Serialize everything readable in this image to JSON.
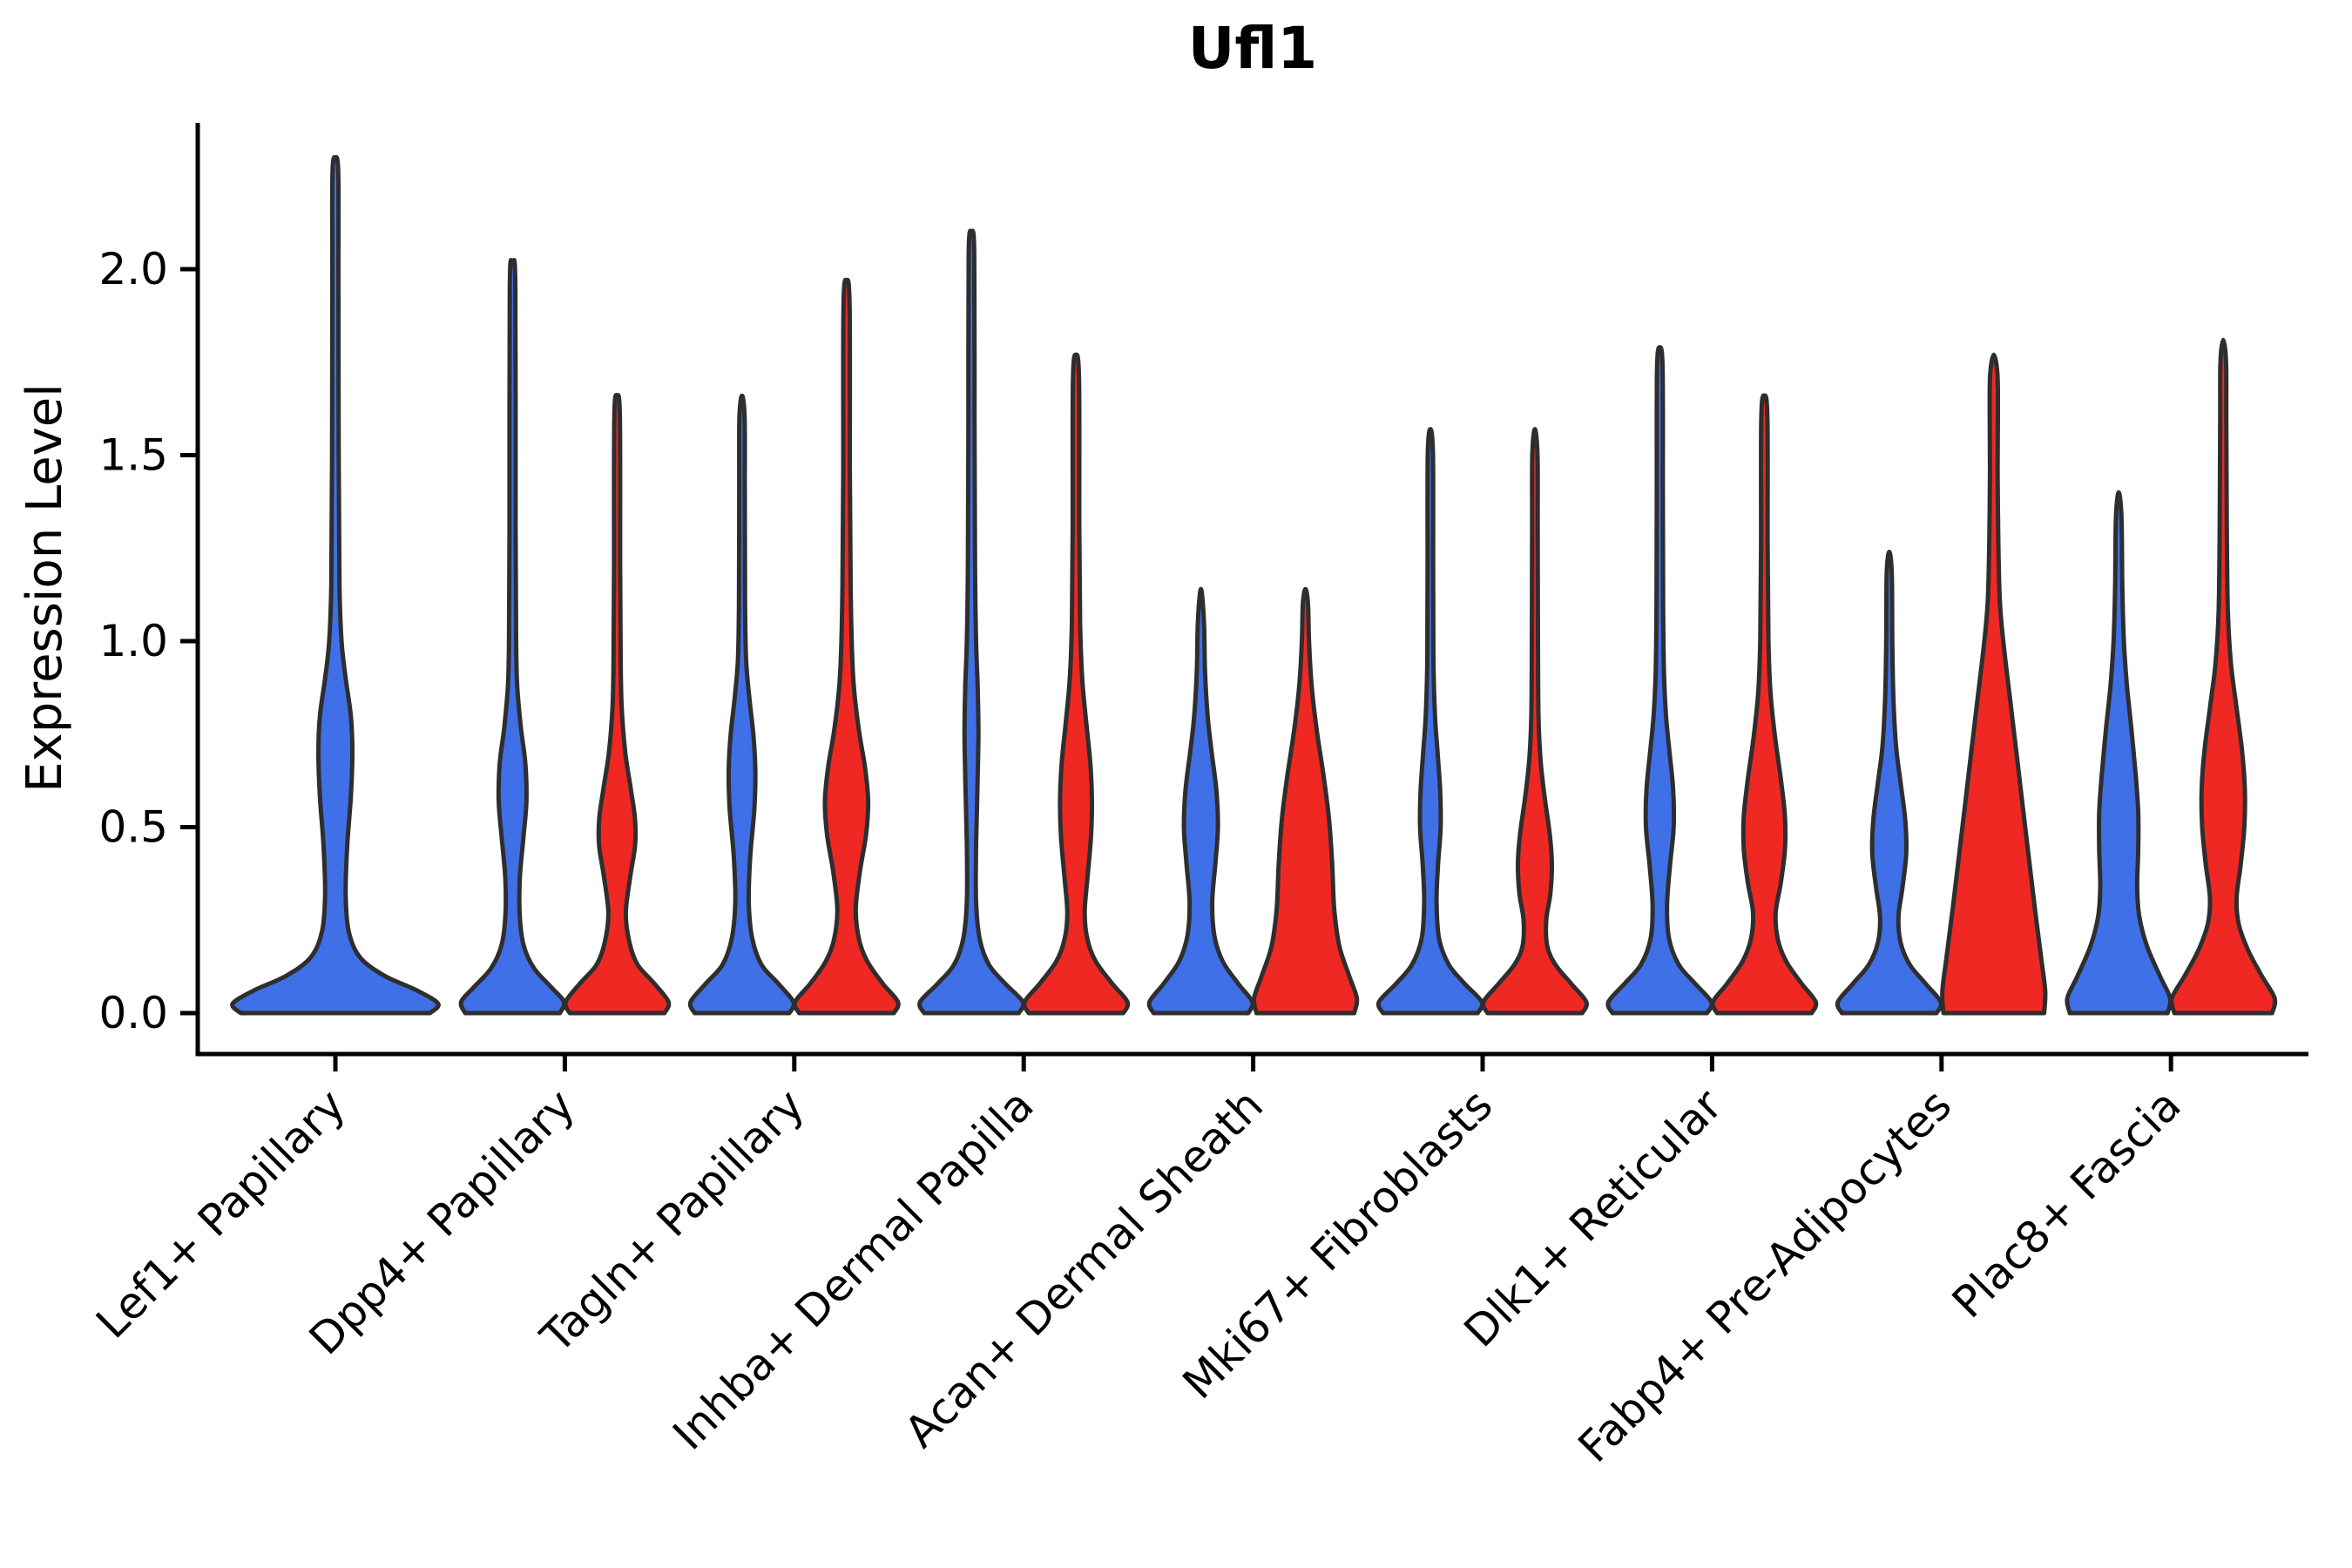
{
  "title": "Ufl1",
  "y_axis": {
    "label": "Expression Level",
    "ticks": [
      "0.0",
      "0.5",
      "1.0",
      "1.5",
      "2.0"
    ]
  },
  "colors": {
    "blue": "#4070E8",
    "red": "#F02823",
    "outline": "#2E2E2E",
    "axis": "#000000"
  },
  "chart_data": {
    "type": "violin",
    "title": "Ufl1",
    "ylabel": "Expression Level",
    "ylim": [
      0,
      2.35
    ],
    "yticks": [
      0.0,
      0.5,
      1.0,
      1.5,
      2.0
    ],
    "grid": false,
    "legend": "none",
    "categories": [
      "Lef1+ Papillary",
      "Dpp4+ Papillary",
      "Tagln+ Papillary",
      "Inhba+ Dermal Papilla",
      "Acan+ Dermal Sheath",
      "Mki67+ Fibroblasts",
      "Dlk1+ Reticular",
      "Fabp4+ Pre-Adipocytes",
      "Plac8+ Fascia"
    ],
    "splits": [
      "blue",
      "red"
    ],
    "split_colors": {
      "blue": "#4070E8",
      "red": "#F02823"
    },
    "max_expression": {
      "blue": [
        2.3,
        2.01,
        1.66,
        2.1,
        1.14,
        1.57,
        1.79,
        1.24,
        1.4
      ],
      "red": [
        null,
        1.66,
        1.97,
        1.77,
        1.14,
        1.57,
        1.66,
        1.77,
        1.81
      ]
    },
    "violins": [
      {
        "category_index": 0,
        "split": "blue",
        "single": true,
        "profile": [
          [
            0,
            0.92
          ],
          [
            0.025,
            1
          ],
          [
            0.06,
            0.8
          ],
          [
            0.1,
            0.48
          ],
          [
            0.15,
            0.24
          ],
          [
            0.22,
            0.13
          ],
          [
            0.32,
            0.1
          ],
          [
            0.45,
            0.115
          ],
          [
            0.58,
            0.15
          ],
          [
            0.7,
            0.165
          ],
          [
            0.8,
            0.15
          ],
          [
            0.9,
            0.1
          ],
          [
            1.0,
            0.06
          ],
          [
            1.15,
            0.04
          ],
          [
            1.5,
            0.032
          ],
          [
            2.0,
            0.03
          ],
          [
            2.26,
            0.028
          ],
          [
            2.3,
            0
          ]
        ]
      },
      {
        "category_index": 1,
        "split": "blue",
        "single": false,
        "profile": [
          [
            0,
            0.92
          ],
          [
            0.03,
            1
          ],
          [
            0.07,
            0.75
          ],
          [
            0.12,
            0.42
          ],
          [
            0.18,
            0.22
          ],
          [
            0.26,
            0.14
          ],
          [
            0.36,
            0.14
          ],
          [
            0.47,
            0.21
          ],
          [
            0.57,
            0.27
          ],
          [
            0.67,
            0.25
          ],
          [
            0.77,
            0.16
          ],
          [
            0.88,
            0.09
          ],
          [
            1.0,
            0.07
          ],
          [
            1.3,
            0.06
          ],
          [
            1.95,
            0.055
          ],
          [
            2.01,
            0
          ]
        ]
      },
      {
        "category_index": 1,
        "split": "red",
        "single": false,
        "profile": [
          [
            0,
            0.92
          ],
          [
            0.03,
            1
          ],
          [
            0.08,
            0.72
          ],
          [
            0.13,
            0.4
          ],
          [
            0.19,
            0.24
          ],
          [
            0.27,
            0.17
          ],
          [
            0.37,
            0.26
          ],
          [
            0.45,
            0.35
          ],
          [
            0.52,
            0.35
          ],
          [
            0.6,
            0.27
          ],
          [
            0.7,
            0.16
          ],
          [
            0.82,
            0.09
          ],
          [
            0.95,
            0.07
          ],
          [
            1.2,
            0.06
          ],
          [
            1.6,
            0.055
          ],
          [
            1.66,
            0
          ]
        ]
      },
      {
        "category_index": 2,
        "split": "blue",
        "single": false,
        "profile": [
          [
            0,
            0.92
          ],
          [
            0.03,
            1
          ],
          [
            0.08,
            0.7
          ],
          [
            0.13,
            0.38
          ],
          [
            0.2,
            0.2
          ],
          [
            0.3,
            0.13
          ],
          [
            0.42,
            0.16
          ],
          [
            0.55,
            0.24
          ],
          [
            0.65,
            0.26
          ],
          [
            0.75,
            0.22
          ],
          [
            0.85,
            0.14
          ],
          [
            0.95,
            0.08
          ],
          [
            1.1,
            0.06
          ],
          [
            1.4,
            0.055
          ],
          [
            1.6,
            0.05
          ],
          [
            1.66,
            0
          ]
        ]
      },
      {
        "category_index": 2,
        "split": "red",
        "single": false,
        "profile": [
          [
            0,
            0.92
          ],
          [
            0.03,
            1
          ],
          [
            0.08,
            0.7
          ],
          [
            0.14,
            0.4
          ],
          [
            0.2,
            0.24
          ],
          [
            0.28,
            0.18
          ],
          [
            0.38,
            0.26
          ],
          [
            0.48,
            0.38
          ],
          [
            0.57,
            0.42
          ],
          [
            0.66,
            0.36
          ],
          [
            0.76,
            0.24
          ],
          [
            0.88,
            0.14
          ],
          [
            1.0,
            0.1
          ],
          [
            1.15,
            0.08
          ],
          [
            1.45,
            0.065
          ],
          [
            1.9,
            0.06
          ],
          [
            1.97,
            0
          ]
        ]
      },
      {
        "category_index": 3,
        "split": "blue",
        "single": false,
        "profile": [
          [
            0,
            0.92
          ],
          [
            0.03,
            1
          ],
          [
            0.08,
            0.65
          ],
          [
            0.13,
            0.34
          ],
          [
            0.2,
            0.16
          ],
          [
            0.3,
            0.09
          ],
          [
            0.45,
            0.09
          ],
          [
            0.6,
            0.115
          ],
          [
            0.75,
            0.135
          ],
          [
            0.88,
            0.12
          ],
          [
            1.0,
            0.09
          ],
          [
            1.2,
            0.07
          ],
          [
            1.6,
            0.06
          ],
          [
            2.04,
            0.055
          ],
          [
            2.1,
            0
          ]
        ]
      },
      {
        "category_index": 3,
        "split": "red",
        "single": false,
        "profile": [
          [
            0,
            0.92
          ],
          [
            0.03,
            1
          ],
          [
            0.08,
            0.7
          ],
          [
            0.14,
            0.38
          ],
          [
            0.2,
            0.22
          ],
          [
            0.27,
            0.17
          ],
          [
            0.36,
            0.22
          ],
          [
            0.47,
            0.29
          ],
          [
            0.57,
            0.31
          ],
          [
            0.67,
            0.28
          ],
          [
            0.78,
            0.2
          ],
          [
            0.9,
            0.12
          ],
          [
            1.05,
            0.08
          ],
          [
            1.3,
            0.065
          ],
          [
            1.7,
            0.06
          ],
          [
            1.77,
            0
          ]
        ]
      },
      {
        "category_index": 4,
        "split": "blue",
        "single": false,
        "profile": [
          [
            0,
            0.92
          ],
          [
            0.03,
            1
          ],
          [
            0.08,
            0.72
          ],
          [
            0.14,
            0.42
          ],
          [
            0.21,
            0.26
          ],
          [
            0.3,
            0.22
          ],
          [
            0.4,
            0.28
          ],
          [
            0.5,
            0.33
          ],
          [
            0.6,
            0.3
          ],
          [
            0.7,
            0.21
          ],
          [
            0.8,
            0.13
          ],
          [
            0.92,
            0.08
          ],
          [
            1.05,
            0.06
          ],
          [
            1.14,
            0
          ]
        ]
      },
      {
        "category_index": 4,
        "split": "red",
        "single": false,
        "profile": [
          [
            0,
            0.95
          ],
          [
            0.04,
            1
          ],
          [
            0.1,
            0.85
          ],
          [
            0.18,
            0.66
          ],
          [
            0.28,
            0.56
          ],
          [
            0.4,
            0.52
          ],
          [
            0.52,
            0.46
          ],
          [
            0.64,
            0.35
          ],
          [
            0.76,
            0.22
          ],
          [
            0.88,
            0.12
          ],
          [
            1.0,
            0.07
          ],
          [
            1.1,
            0.05
          ],
          [
            1.14,
            0
          ]
        ]
      },
      {
        "category_index": 5,
        "split": "blue",
        "single": false,
        "profile": [
          [
            0,
            0.92
          ],
          [
            0.03,
            1
          ],
          [
            0.08,
            0.66
          ],
          [
            0.13,
            0.36
          ],
          [
            0.2,
            0.17
          ],
          [
            0.3,
            0.12
          ],
          [
            0.4,
            0.15
          ],
          [
            0.5,
            0.2
          ],
          [
            0.6,
            0.19
          ],
          [
            0.7,
            0.14
          ],
          [
            0.8,
            0.09
          ],
          [
            0.95,
            0.06
          ],
          [
            1.2,
            0.055
          ],
          [
            1.5,
            0.05
          ],
          [
            1.57,
            0
          ]
        ]
      },
      {
        "category_index": 5,
        "split": "red",
        "single": false,
        "profile": [
          [
            0,
            0.92
          ],
          [
            0.03,
            1
          ],
          [
            0.08,
            0.7
          ],
          [
            0.13,
            0.4
          ],
          [
            0.18,
            0.24
          ],
          [
            0.25,
            0.22
          ],
          [
            0.32,
            0.3
          ],
          [
            0.4,
            0.33
          ],
          [
            0.48,
            0.29
          ],
          [
            0.58,
            0.19
          ],
          [
            0.68,
            0.11
          ],
          [
            0.8,
            0.07
          ],
          [
            1.0,
            0.06
          ],
          [
            1.3,
            0.055
          ],
          [
            1.5,
            0.05
          ],
          [
            1.57,
            0
          ]
        ]
      },
      {
        "category_index": 6,
        "split": "blue",
        "single": false,
        "profile": [
          [
            0,
            0.92
          ],
          [
            0.03,
            1
          ],
          [
            0.08,
            0.68
          ],
          [
            0.13,
            0.37
          ],
          [
            0.2,
            0.18
          ],
          [
            0.29,
            0.14
          ],
          [
            0.4,
            0.2
          ],
          [
            0.5,
            0.27
          ],
          [
            0.6,
            0.26
          ],
          [
            0.7,
            0.19
          ],
          [
            0.8,
            0.12
          ],
          [
            0.92,
            0.08
          ],
          [
            1.1,
            0.065
          ],
          [
            1.4,
            0.06
          ],
          [
            1.73,
            0.055
          ],
          [
            1.79,
            0
          ]
        ]
      },
      {
        "category_index": 6,
        "split": "red",
        "single": false,
        "profile": [
          [
            0,
            0.92
          ],
          [
            0.03,
            1
          ],
          [
            0.08,
            0.72
          ],
          [
            0.14,
            0.42
          ],
          [
            0.2,
            0.26
          ],
          [
            0.27,
            0.22
          ],
          [
            0.35,
            0.32
          ],
          [
            0.44,
            0.4
          ],
          [
            0.53,
            0.4
          ],
          [
            0.63,
            0.32
          ],
          [
            0.74,
            0.21
          ],
          [
            0.86,
            0.12
          ],
          [
            1.0,
            0.08
          ],
          [
            1.25,
            0.065
          ],
          [
            1.6,
            0.06
          ],
          [
            1.66,
            0
          ]
        ]
      },
      {
        "category_index": 7,
        "split": "blue",
        "single": false,
        "profile": [
          [
            0,
            0.92
          ],
          [
            0.03,
            1
          ],
          [
            0.08,
            0.7
          ],
          [
            0.13,
            0.4
          ],
          [
            0.19,
            0.22
          ],
          [
            0.26,
            0.18
          ],
          [
            0.34,
            0.26
          ],
          [
            0.43,
            0.33
          ],
          [
            0.52,
            0.31
          ],
          [
            0.62,
            0.22
          ],
          [
            0.72,
            0.13
          ],
          [
            0.85,
            0.08
          ],
          [
            1.0,
            0.06
          ],
          [
            1.18,
            0.05
          ],
          [
            1.24,
            0
          ]
        ]
      },
      {
        "category_index": 7,
        "split": "red",
        "single": false,
        "profile": [
          [
            0,
            0.98
          ],
          [
            0.06,
            1
          ],
          [
            0.15,
            0.92
          ],
          [
            0.28,
            0.8
          ],
          [
            0.42,
            0.68
          ],
          [
            0.56,
            0.56
          ],
          [
            0.7,
            0.44
          ],
          [
            0.84,
            0.32
          ],
          [
            0.98,
            0.2
          ],
          [
            1.1,
            0.12
          ],
          [
            1.25,
            0.09
          ],
          [
            1.45,
            0.075
          ],
          [
            1.62,
            0.08
          ],
          [
            1.72,
            0.07
          ],
          [
            1.77,
            0
          ]
        ]
      },
      {
        "category_index": 8,
        "split": "blue",
        "single": false,
        "profile": [
          [
            0,
            0.95
          ],
          [
            0.04,
            1
          ],
          [
            0.1,
            0.8
          ],
          [
            0.18,
            0.55
          ],
          [
            0.26,
            0.4
          ],
          [
            0.34,
            0.36
          ],
          [
            0.44,
            0.38
          ],
          [
            0.54,
            0.38
          ],
          [
            0.64,
            0.33
          ],
          [
            0.76,
            0.25
          ],
          [
            0.88,
            0.16
          ],
          [
            1.0,
            0.1
          ],
          [
            1.15,
            0.07
          ],
          [
            1.33,
            0.055
          ],
          [
            1.4,
            0
          ]
        ]
      },
      {
        "category_index": 8,
        "split": "red",
        "single": false,
        "profile": [
          [
            0,
            0.95
          ],
          [
            0.04,
            1
          ],
          [
            0.1,
            0.75
          ],
          [
            0.17,
            0.48
          ],
          [
            0.24,
            0.3
          ],
          [
            0.31,
            0.26
          ],
          [
            0.4,
            0.34
          ],
          [
            0.5,
            0.41
          ],
          [
            0.6,
            0.42
          ],
          [
            0.7,
            0.37
          ],
          [
            0.82,
            0.26
          ],
          [
            0.94,
            0.15
          ],
          [
            1.08,
            0.09
          ],
          [
            1.3,
            0.07
          ],
          [
            1.6,
            0.06
          ],
          [
            1.75,
            0.055
          ],
          [
            1.81,
            0
          ]
        ]
      }
    ]
  }
}
